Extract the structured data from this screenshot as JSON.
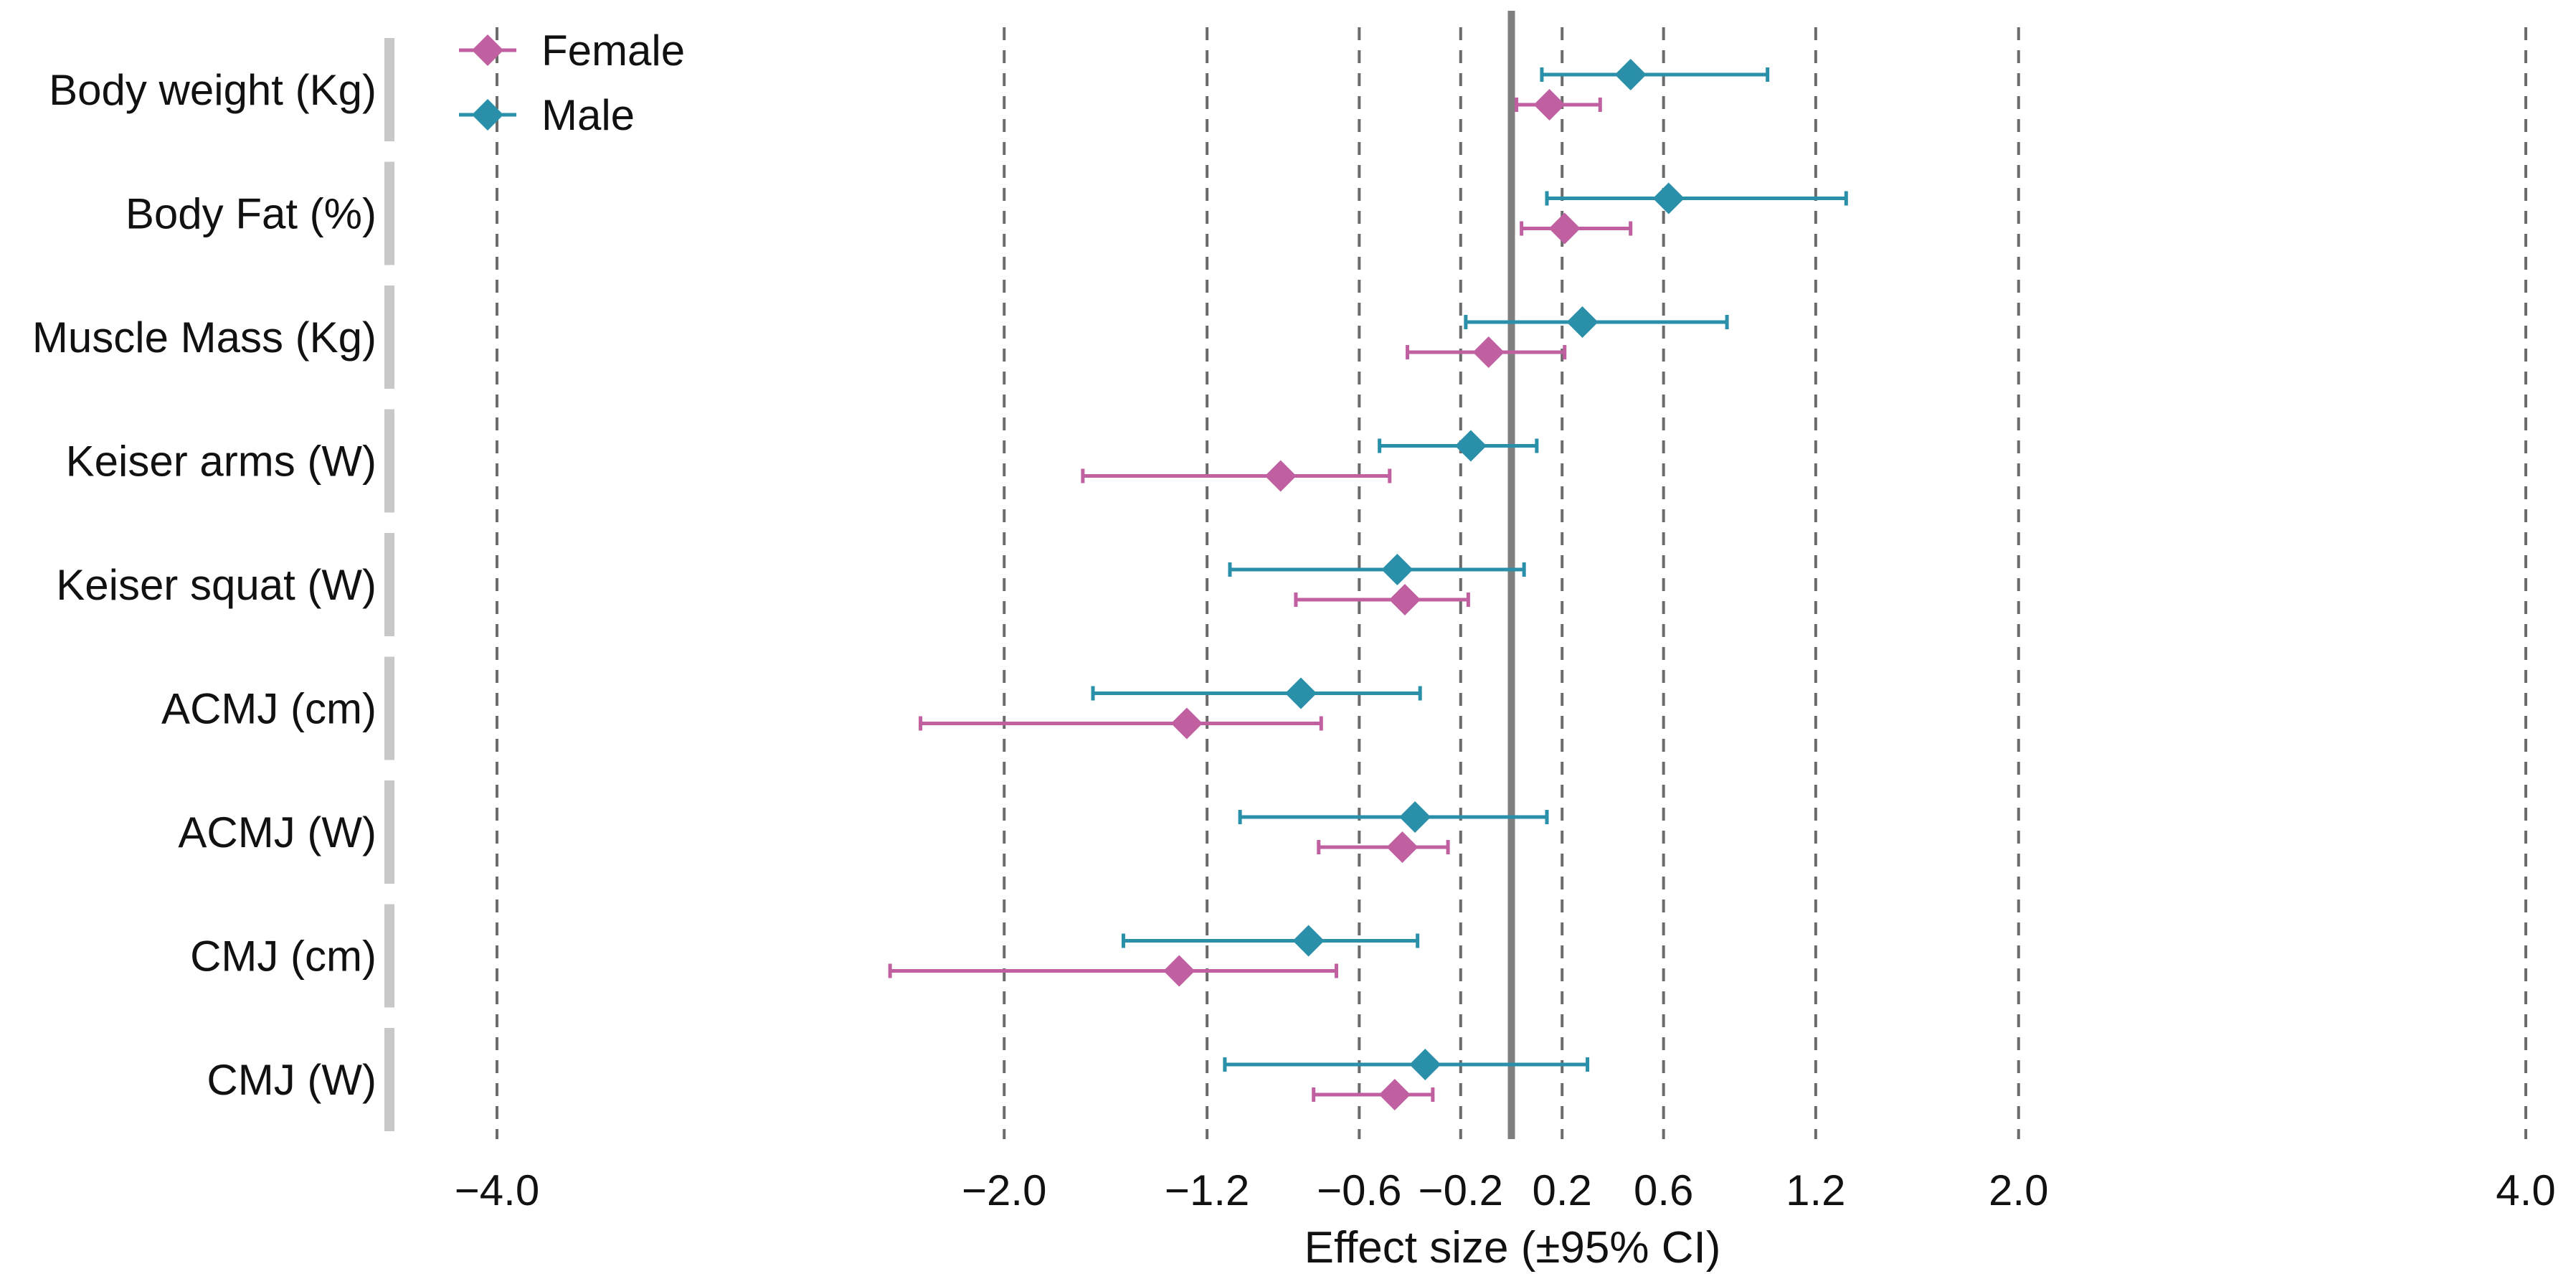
{
  "chart_data": {
    "type": "forest",
    "title": "",
    "xlabel": "Effect size (±95% CI)",
    "ylabel": "",
    "xlim": [
      -4.0,
      4.0
    ],
    "xticks": [
      -4.0,
      -2.0,
      -1.2,
      -0.6,
      -0.2,
      0.2,
      0.6,
      1.2,
      2.0,
      4.0
    ],
    "xtick_labels": [
      "−4.0",
      "−2.0",
      "−1.2",
      "−0.6",
      "−0.2",
      "0.2",
      "0.6",
      "1.2",
      "2.0",
      "4.0"
    ],
    "gridlines": "dashed vertical at tick values",
    "reference_line": 0,
    "legend_position": "top-left",
    "categories": [
      "Body weight (Kg)",
      "Body Fat (%)",
      "Muscle Mass (Kg)",
      "Keiser arms (W)",
      "Keiser squat (W)",
      "ACMJ (cm)",
      "ACMJ (W)",
      "CMJ (cm)",
      "CMJ (W)"
    ],
    "series": [
      {
        "name": "Female",
        "color": "#c060a1",
        "values": [
          0.15,
          0.21,
          -0.09,
          -0.91,
          -0.42,
          -1.28,
          -0.43,
          -1.31,
          -0.46
        ],
        "ci_lower": [
          0.02,
          0.04,
          -0.41,
          -1.69,
          -0.85,
          -2.33,
          -0.76,
          -2.45,
          -0.78
        ],
        "ci_upper": [
          0.35,
          0.47,
          0.21,
          -0.48,
          -0.17,
          -0.75,
          -0.25,
          -0.69,
          -0.31
        ]
      },
      {
        "name": "Male",
        "color": "#2a8fa8",
        "values": [
          0.47,
          0.62,
          0.28,
          -0.16,
          -0.45,
          -0.83,
          -0.38,
          -0.8,
          -0.34
        ],
        "ci_lower": [
          0.12,
          0.14,
          -0.18,
          -0.52,
          -1.11,
          -1.65,
          -1.07,
          -1.53,
          -1.13
        ],
        "ci_upper": [
          1.01,
          1.32,
          0.85,
          0.1,
          0.05,
          -0.36,
          0.14,
          -0.37,
          0.3
        ]
      }
    ]
  }
}
